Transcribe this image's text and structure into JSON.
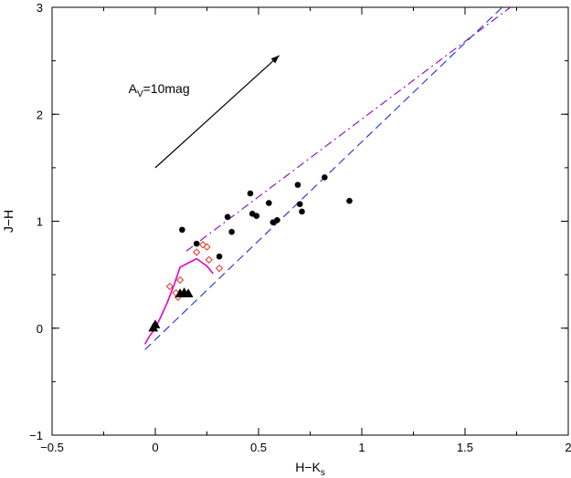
{
  "chart_data": {
    "type": "scatter",
    "xlabel": "H−K",
    "xlabel_sub": "s",
    "ylabel": "J−H",
    "xlim": [
      -0.5,
      2
    ],
    "ylim": [
      -1,
      3
    ],
    "xticks": [
      -0.5,
      0,
      0.5,
      1,
      1.5,
      2
    ],
    "xtick_labels": [
      "−0.5",
      "0",
      "0.5",
      "1",
      "1.5",
      "2"
    ],
    "yticks": [
      -1,
      0,
      1,
      2,
      3
    ],
    "ytick_labels": [
      "−1",
      "0",
      "1",
      "2",
      "3"
    ],
    "grid": false,
    "annotation": {
      "text": "A",
      "sub": "V",
      "text_after": "=10mag",
      "x": -0.13,
      "y": 2.2
    },
    "reddening_vector": {
      "x0": 0.0,
      "y0": 1.5,
      "x1": 0.6,
      "y1": 2.55,
      "color": "#000000"
    },
    "lines": [
      {
        "style": "dashdot",
        "color": "#8b00c8",
        "x": [
          0.15,
          1.72
        ],
        "y": [
          0.72,
          3.0
        ]
      },
      {
        "style": "dashed",
        "color": "#1f2fd6",
        "x": [
          -0.05,
          1.68
        ],
        "y": [
          -0.2,
          3.0
        ]
      },
      {
        "style": "solid",
        "color": "#e600c8",
        "x": [
          -0.05,
          -0.03,
          0.0,
          0.03,
          0.06,
          0.09,
          0.12,
          0.16,
          0.2,
          0.25,
          0.28
        ],
        "y": [
          -0.15,
          -0.08,
          0.0,
          0.12,
          0.25,
          0.4,
          0.57,
          0.61,
          0.65,
          0.58,
          0.51
        ]
      }
    ],
    "series": [
      {
        "marker": "circle",
        "color": "#000000",
        "x": [
          0.13,
          0.2,
          0.35,
          0.37,
          0.31,
          0.46,
          0.47,
          0.49,
          0.55,
          0.57,
          0.59,
          0.69,
          0.7,
          0.71,
          0.82,
          0.94
        ],
        "y": [
          0.92,
          0.79,
          1.04,
          0.9,
          0.67,
          1.26,
          1.07,
          1.05,
          1.17,
          0.99,
          1.01,
          1.34,
          1.16,
          1.09,
          1.41,
          1.19
        ]
      },
      {
        "marker": "diamond",
        "color": "#e8331c",
        "x": [
          0.07,
          0.1,
          0.11,
          0.12,
          0.2,
          0.23,
          0.25,
          0.26,
          0.31
        ],
        "y": [
          0.39,
          0.33,
          0.29,
          0.45,
          0.71,
          0.78,
          0.76,
          0.64,
          0.56
        ]
      },
      {
        "marker": "triangle",
        "color": "#000000",
        "x": [
          -0.01,
          0.0,
          0.12,
          0.14,
          0.16
        ],
        "y": [
          0.0,
          0.03,
          0.32,
          0.33,
          0.32
        ]
      }
    ]
  }
}
